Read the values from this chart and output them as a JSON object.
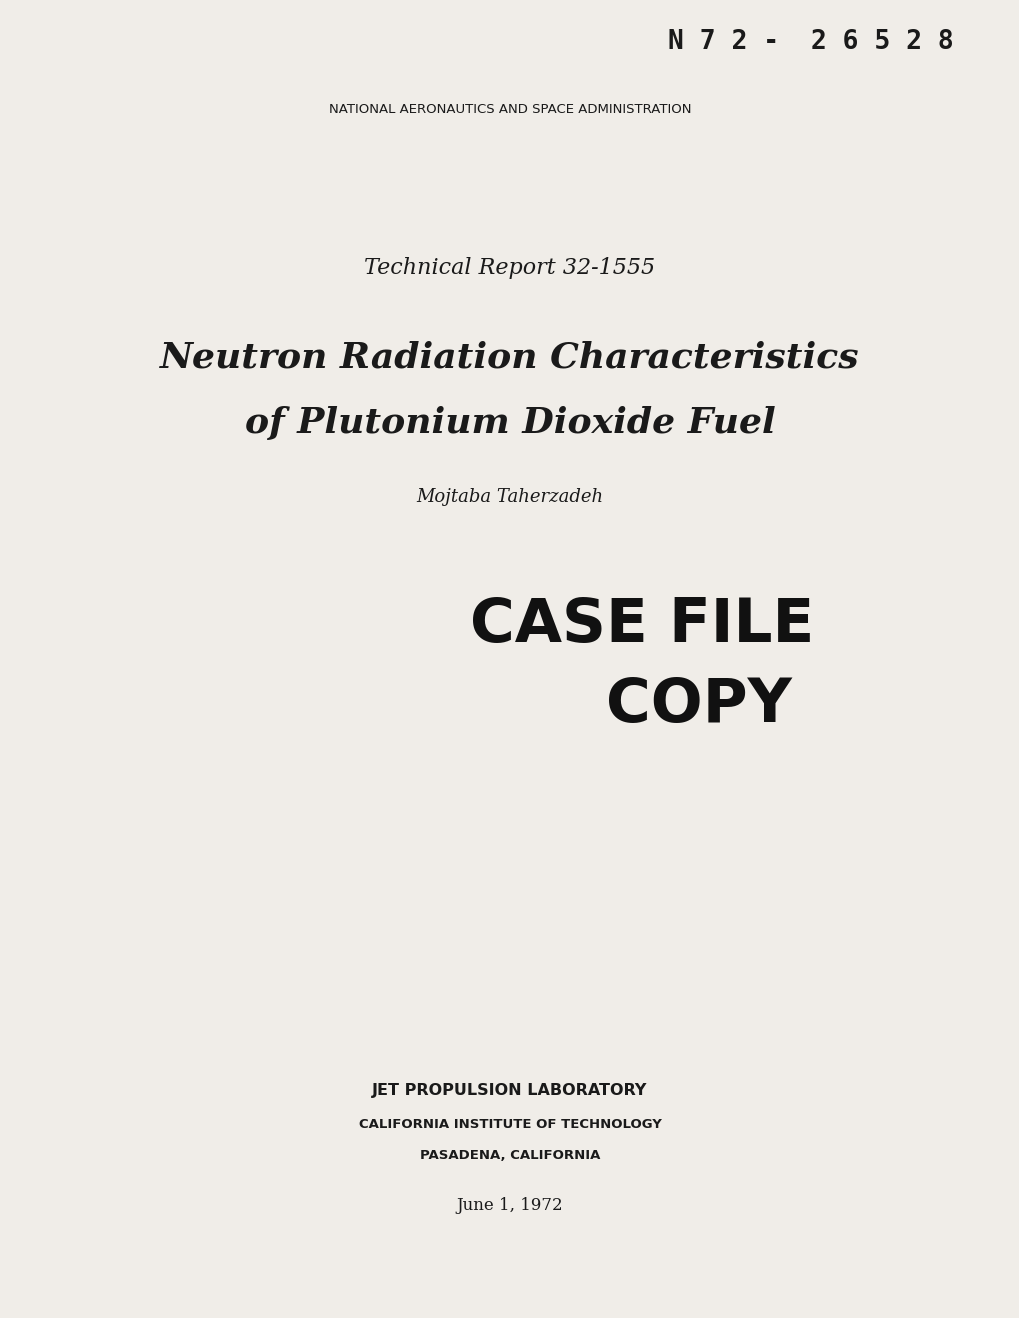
{
  "background_color": "#f0ede8",
  "report_id": "N 7 2 -  2 6 5 2 8",
  "nasa_line": "NATIONAL AERONAUTICS AND SPACE ADMINISTRATION",
  "tech_report": "Technical Report 32-1555",
  "title_line1": "Neutron Radiation Characteristics",
  "title_line2": "of Plutonium Dioxide Fuel",
  "author": "Mojtaba Taherzadeh",
  "case_file_line1": "CASE FILE",
  "case_file_line2": "COPY",
  "lab_line1": "JET PROPULSION LABORATORY",
  "lab_line2": "CALIFORNIA INSTITUTE OF TECHNOLOGY",
  "lab_line3": "PASADENA, CALIFORNIA",
  "date": "June 1, 1972",
  "text_color": "#1a1a1a",
  "stamp_color": "#111111"
}
